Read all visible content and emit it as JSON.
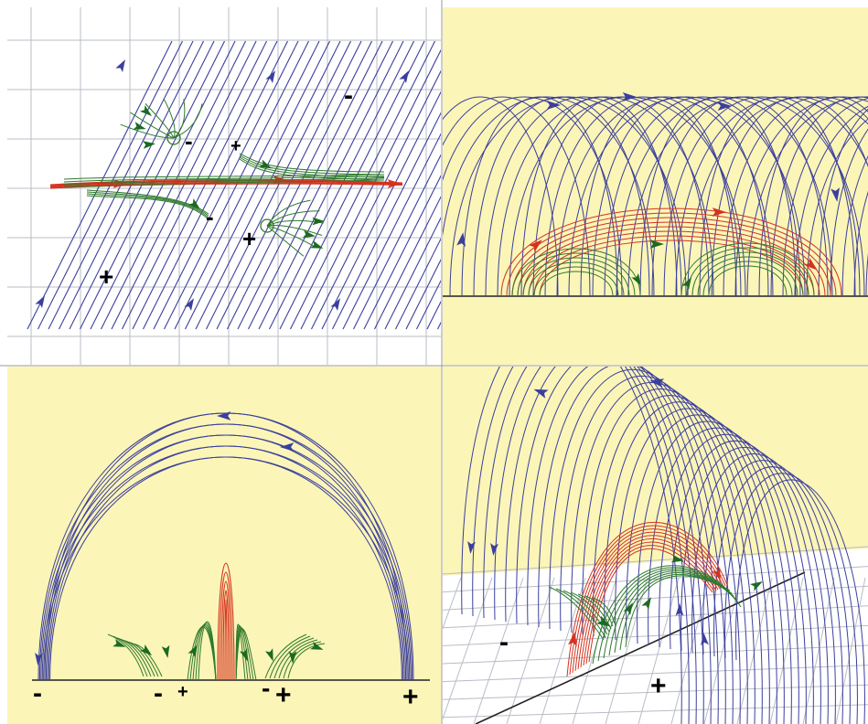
{
  "colors": {
    "background": "#ffffff",
    "panel_fill": "#fbf5b8",
    "grid": "#b9bcc6",
    "field_blue": "#3b3f9c",
    "field_red": "#d4331f",
    "field_green": "#2f7a2c",
    "arrow_green": "#1b6a20",
    "ground": "#222222",
    "divider": "#999999"
  },
  "panels": [
    {
      "id": "top-left",
      "view": "top view, plan grid",
      "labels": [
        "-",
        "-",
        "+",
        "+",
        "-",
        "+"
      ]
    },
    {
      "id": "top-right",
      "view": "side view, arched field",
      "labels": []
    },
    {
      "id": "bottom-left",
      "view": "side view, single arch",
      "labels": [
        "-",
        "-",
        "+",
        "-",
        "+",
        "+"
      ]
    },
    {
      "id": "bottom-right",
      "view": "perspective view",
      "labels": [
        "-",
        "+"
      ]
    }
  ],
  "icons": {
    "field_arrow": "field-arrow-icon",
    "polarity_circle": "polarity-circle-icon"
  }
}
